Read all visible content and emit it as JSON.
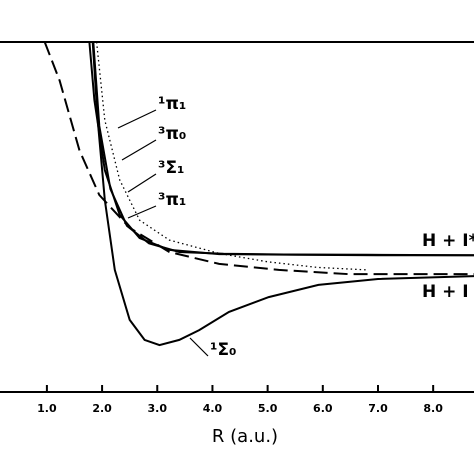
{
  "chart_data": {
    "type": "line",
    "xlabel": "R (a.u.)",
    "xlim": [
      0.15,
      8.74
    ],
    "ylim": [
      0,
      100
    ],
    "xticks": [
      {
        "value": 1,
        "label": "1.0"
      },
      {
        "value": 2,
        "label": "2.0"
      },
      {
        "value": 3,
        "label": "3.0"
      },
      {
        "value": 4,
        "label": "4.0"
      },
      {
        "value": 5,
        "label": "5.0"
      },
      {
        "value": 6,
        "label": "6.0"
      },
      {
        "value": 7,
        "label": "7.0"
      },
      {
        "value": 8,
        "label": "8.0"
      }
    ],
    "series": [
      {
        "name": "¹π₁",
        "color": "#000000",
        "style": "solid",
        "x": [
          1.77,
          1.86,
          2.05,
          2.32,
          2.68,
          3.22,
          4.12,
          5.5,
          7.0,
          8.74
        ],
        "values": [
          100,
          83.4,
          63.4,
          50.6,
          44,
          40.6,
          39.4,
          39.2,
          39.1,
          39.1
        ]
      },
      {
        "name": "³π₀",
        "color": "#000000",
        "style": "dotted",
        "x": [
          1.9,
          2.05,
          2.32,
          2.68,
          3.22,
          4.12,
          5.0,
          5.9,
          6.8
        ],
        "values": [
          100,
          77.7,
          60.6,
          49.1,
          43.4,
          39.6,
          37.2,
          35.6,
          34.9
        ]
      },
      {
        "name": "³Σ₁",
        "color": "#000000",
        "style": "dashed",
        "x": [
          0.96,
          1.23,
          1.59,
          1.95,
          2.5,
          3.22,
          4.12,
          5.2,
          6.46,
          8.74
        ],
        "values": [
          100,
          89,
          69,
          56.3,
          46.9,
          40,
          36.6,
          34.9,
          33.7,
          33.7
        ]
      },
      {
        "name": "³π₁",
        "color": "#000000",
        "style": "solid",
        "x": [
          1.84,
          1.95,
          2.15,
          2.45,
          2.85,
          3.4,
          4.2,
          5.3,
          6.8,
          8.74
        ],
        "values": [
          100,
          76,
          58,
          47.5,
          42.5,
          40,
          39.5,
          39.3,
          39.2,
          39.1
        ]
      },
      {
        "name": "¹Σ₀",
        "color": "#000000",
        "style": "solid",
        "x": [
          1.83,
          1.92,
          2.05,
          2.23,
          2.5,
          2.77,
          3.04,
          3.4,
          3.76,
          4.3,
          5.02,
          5.92,
          7.0,
          8.74
        ],
        "values": [
          100,
          77.7,
          54.9,
          34.9,
          20.6,
          14.9,
          13.4,
          14.9,
          17.7,
          22.9,
          27.1,
          30.6,
          32.3,
          33.1
        ]
      }
    ],
    "annotations": [
      "H + I*",
      "H + I"
    ]
  }
}
